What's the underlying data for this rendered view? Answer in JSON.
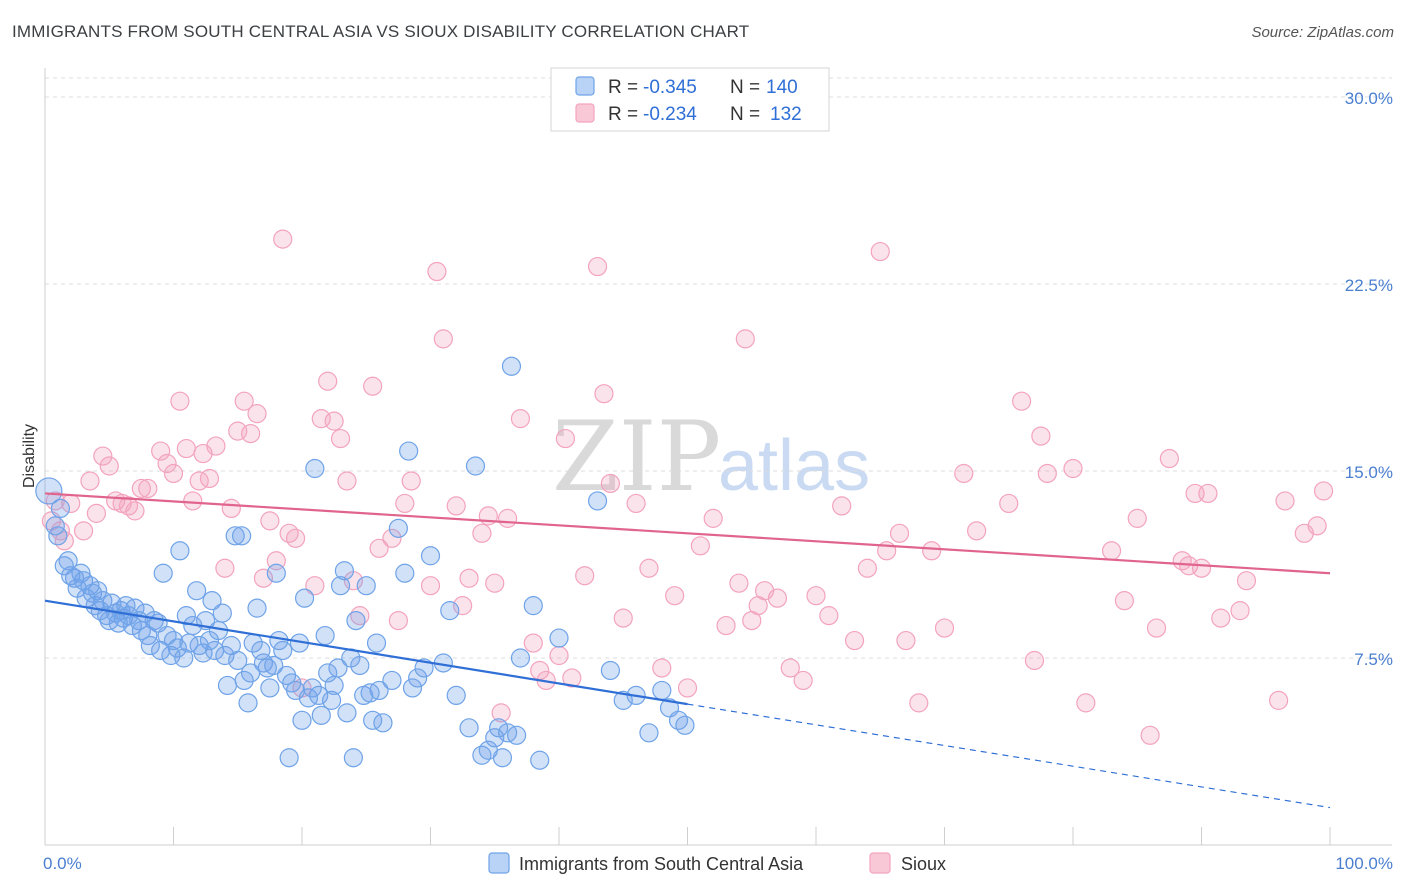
{
  "title": "IMMIGRANTS FROM SOUTH CENTRAL ASIA VS SIOUX DISABILITY CORRELATION CHART",
  "source": "Source: ZipAtlas.com",
  "watermark": {
    "zip": "ZIP",
    "atlas": "atlas"
  },
  "colors": {
    "blue": "#6fa3e8",
    "blue_line": "#2f6fd6",
    "pink": "#f3a3bd",
    "pink_line": "#e0648d",
    "tick": "#4a7fd0",
    "grid": "#dcdcdc"
  },
  "legend": {
    "rows": [
      {
        "r_label": "R = ",
        "r_value": "-0.345",
        "n_label": "N = ",
        "n_value": "140"
      },
      {
        "r_label": "R = ",
        "r_value": "-0.234",
        "n_label": "N = ",
        "n_value": "132"
      }
    ]
  },
  "bottom_legend": [
    "Immigrants from South Central Asia",
    "Sioux"
  ],
  "chart_data": {
    "type": "scatter",
    "ylabel": "Disability",
    "xlim": [
      0,
      100
    ],
    "ylim": [
      0,
      30
    ],
    "x_tick_labels": [
      "0.0%",
      "100.0%"
    ],
    "y_ticks": [
      7.5,
      15.0,
      22.5,
      30.0
    ],
    "y_tick_labels": [
      "7.5%",
      "15.0%",
      "22.5%",
      "30.0%"
    ],
    "grid": "horizontal dashed",
    "legend_placement": "top-center",
    "series": [
      {
        "name": "Immigrants from South Central Asia",
        "color": "#6fa3e8",
        "trend": {
          "x0": 0,
          "y0": 9.8,
          "x1": 100,
          "y1": 1.5,
          "solid_until": 50
        },
        "points": [
          [
            0.3,
            14.2
          ],
          [
            0.8,
            12.8
          ],
          [
            1.0,
            12.4
          ],
          [
            1.2,
            13.5
          ],
          [
            1.5,
            11.2
          ],
          [
            1.8,
            11.4
          ],
          [
            2.0,
            10.8
          ],
          [
            2.3,
            10.7
          ],
          [
            2.5,
            10.3
          ],
          [
            2.8,
            10.9
          ],
          [
            3.0,
            10.6
          ],
          [
            3.2,
            9.9
          ],
          [
            3.5,
            10.4
          ],
          [
            3.7,
            10.1
          ],
          [
            3.9,
            9.6
          ],
          [
            4.1,
            10.2
          ],
          [
            4.3,
            9.4
          ],
          [
            4.5,
            9.8
          ],
          [
            4.8,
            9.2
          ],
          [
            5.0,
            9.0
          ],
          [
            5.2,
            9.7
          ],
          [
            5.5,
            9.3
          ],
          [
            5.7,
            8.9
          ],
          [
            5.9,
            9.4
          ],
          [
            6.1,
            9.1
          ],
          [
            6.3,
            9.6
          ],
          [
            6.5,
            9.2
          ],
          [
            6.8,
            8.8
          ],
          [
            7.0,
            9.5
          ],
          [
            7.3,
            9.0
          ],
          [
            7.5,
            8.6
          ],
          [
            7.8,
            9.3
          ],
          [
            8.0,
            8.4
          ],
          [
            8.2,
            8.0
          ],
          [
            8.5,
            9.0
          ],
          [
            8.8,
            8.9
          ],
          [
            9.0,
            7.8
          ],
          [
            9.2,
            10.9
          ],
          [
            9.5,
            8.4
          ],
          [
            9.8,
            7.6
          ],
          [
            10.0,
            8.2
          ],
          [
            10.3,
            7.9
          ],
          [
            10.5,
            11.8
          ],
          [
            10.8,
            7.5
          ],
          [
            11.0,
            9.2
          ],
          [
            11.2,
            8.1
          ],
          [
            11.5,
            8.8
          ],
          [
            11.8,
            10.2
          ],
          [
            12.0,
            8.0
          ],
          [
            12.3,
            7.7
          ],
          [
            12.5,
            9.0
          ],
          [
            12.8,
            8.2
          ],
          [
            13.0,
            9.8
          ],
          [
            13.2,
            7.8
          ],
          [
            13.5,
            8.6
          ],
          [
            13.8,
            9.3
          ],
          [
            14.0,
            7.6
          ],
          [
            14.2,
            6.4
          ],
          [
            14.5,
            8.0
          ],
          [
            14.8,
            12.4
          ],
          [
            15.0,
            7.4
          ],
          [
            15.3,
            12.4
          ],
          [
            15.5,
            6.6
          ],
          [
            15.8,
            5.7
          ],
          [
            16.0,
            6.9
          ],
          [
            16.2,
            8.1
          ],
          [
            16.5,
            9.5
          ],
          [
            16.8,
            7.8
          ],
          [
            17.0,
            7.3
          ],
          [
            17.3,
            7.1
          ],
          [
            17.5,
            6.3
          ],
          [
            17.8,
            7.2
          ],
          [
            18.0,
            10.9
          ],
          [
            18.2,
            8.2
          ],
          [
            18.5,
            7.8
          ],
          [
            18.8,
            6.8
          ],
          [
            19.0,
            3.5
          ],
          [
            19.2,
            6.5
          ],
          [
            19.5,
            6.2
          ],
          [
            19.8,
            8.1
          ],
          [
            20.0,
            5.0
          ],
          [
            20.2,
            9.9
          ],
          [
            20.5,
            5.9
          ],
          [
            20.8,
            6.3
          ],
          [
            21.0,
            15.1
          ],
          [
            21.3,
            6.0
          ],
          [
            21.5,
            5.2
          ],
          [
            21.8,
            8.4
          ],
          [
            22.0,
            6.9
          ],
          [
            22.3,
            5.8
          ],
          [
            22.5,
            6.4
          ],
          [
            22.8,
            7.1
          ],
          [
            23.0,
            10.4
          ],
          [
            23.3,
            11.0
          ],
          [
            23.5,
            5.3
          ],
          [
            23.8,
            7.5
          ],
          [
            24.0,
            3.5
          ],
          [
            24.2,
            9.0
          ],
          [
            24.5,
            7.2
          ],
          [
            24.8,
            6.0
          ],
          [
            25.0,
            10.4
          ],
          [
            25.3,
            6.1
          ],
          [
            25.5,
            5.0
          ],
          [
            25.8,
            8.1
          ],
          [
            26.0,
            6.2
          ],
          [
            26.3,
            4.9
          ],
          [
            27.0,
            6.6
          ],
          [
            27.5,
            12.7
          ],
          [
            28.0,
            10.9
          ],
          [
            28.3,
            15.8
          ],
          [
            28.6,
            6.3
          ],
          [
            29.0,
            6.7
          ],
          [
            29.5,
            7.1
          ],
          [
            30.0,
            11.6
          ],
          [
            31.0,
            7.3
          ],
          [
            31.5,
            9.4
          ],
          [
            32.0,
            6.0
          ],
          [
            33.0,
            4.7
          ],
          [
            33.5,
            15.2
          ],
          [
            34.0,
            3.6
          ],
          [
            34.5,
            3.8
          ],
          [
            35.0,
            4.3
          ],
          [
            35.3,
            4.7
          ],
          [
            35.6,
            3.5
          ],
          [
            36.0,
            4.5
          ],
          [
            36.3,
            19.2
          ],
          [
            36.7,
            4.4
          ],
          [
            37.0,
            7.5
          ],
          [
            38.0,
            9.6
          ],
          [
            38.5,
            3.4
          ],
          [
            40.0,
            8.3
          ],
          [
            43.0,
            13.8
          ],
          [
            44.0,
            7.0
          ],
          [
            45.0,
            5.8
          ],
          [
            46.0,
            6.0
          ],
          [
            47.0,
            4.5
          ],
          [
            48.0,
            6.2
          ],
          [
            48.6,
            5.5
          ],
          [
            49.3,
            5.0
          ],
          [
            49.8,
            4.8
          ]
        ]
      },
      {
        "name": "Sioux",
        "color": "#f3a3bd",
        "trend": {
          "x0": 0,
          "y0": 14.1,
          "x1": 100,
          "y1": 10.9,
          "solid_until": 100
        },
        "points": [
          [
            0.5,
            13.0
          ],
          [
            0.8,
            13.8
          ],
          [
            1.2,
            12.6
          ],
          [
            1.5,
            12.2
          ],
          [
            2.0,
            13.7
          ],
          [
            3.0,
            12.6
          ],
          [
            3.5,
            14.6
          ],
          [
            4.0,
            13.3
          ],
          [
            4.5,
            15.6
          ],
          [
            5.0,
            15.2
          ],
          [
            5.5,
            13.8
          ],
          [
            6.0,
            13.7
          ],
          [
            6.5,
            13.6
          ],
          [
            7.0,
            13.4
          ],
          [
            7.5,
            14.3
          ],
          [
            8.0,
            14.3
          ],
          [
            9.0,
            15.8
          ],
          [
            9.5,
            15.3
          ],
          [
            10.0,
            14.9
          ],
          [
            10.5,
            17.8
          ],
          [
            11.0,
            15.9
          ],
          [
            11.5,
            13.8
          ],
          [
            12.0,
            14.6
          ],
          [
            12.3,
            15.7
          ],
          [
            12.8,
            14.7
          ],
          [
            13.3,
            16.0
          ],
          [
            14.0,
            11.1
          ],
          [
            14.5,
            13.5
          ],
          [
            15.0,
            16.6
          ],
          [
            15.5,
            17.8
          ],
          [
            16.0,
            16.5
          ],
          [
            16.5,
            17.3
          ],
          [
            17.0,
            10.7
          ],
          [
            17.5,
            13.0
          ],
          [
            18.0,
            11.4
          ],
          [
            18.5,
            24.3
          ],
          [
            19.0,
            12.5
          ],
          [
            19.5,
            12.3
          ],
          [
            20.0,
            6.3
          ],
          [
            21.0,
            10.4
          ],
          [
            21.5,
            17.1
          ],
          [
            22.0,
            18.6
          ],
          [
            22.5,
            17.0
          ],
          [
            23.0,
            16.3
          ],
          [
            23.5,
            14.6
          ],
          [
            24.0,
            10.6
          ],
          [
            24.5,
            9.2
          ],
          [
            25.5,
            18.4
          ],
          [
            26.0,
            11.9
          ],
          [
            27.0,
            12.3
          ],
          [
            27.5,
            9.0
          ],
          [
            28.0,
            13.7
          ],
          [
            28.5,
            14.6
          ],
          [
            30.0,
            10.4
          ],
          [
            30.5,
            23.0
          ],
          [
            31.0,
            20.3
          ],
          [
            32.0,
            13.6
          ],
          [
            32.5,
            9.6
          ],
          [
            33.0,
            10.7
          ],
          [
            34.0,
            12.5
          ],
          [
            34.5,
            13.2
          ],
          [
            35.0,
            10.5
          ],
          [
            35.5,
            5.3
          ],
          [
            36.0,
            13.1
          ],
          [
            37.0,
            17.1
          ],
          [
            38.0,
            8.1
          ],
          [
            38.5,
            7.0
          ],
          [
            39.0,
            6.6
          ],
          [
            40.0,
            7.6
          ],
          [
            40.5,
            16.3
          ],
          [
            41.0,
            6.7
          ],
          [
            42.0,
            10.8
          ],
          [
            43.0,
            23.2
          ],
          [
            43.5,
            18.1
          ],
          [
            44.0,
            14.5
          ],
          [
            45.0,
            9.1
          ],
          [
            46.0,
            13.7
          ],
          [
            47.0,
            11.1
          ],
          [
            48.0,
            7.1
          ],
          [
            49.0,
            10.0
          ],
          [
            50.0,
            6.3
          ],
          [
            51.0,
            12.0
          ],
          [
            52.0,
            13.1
          ],
          [
            53.0,
            8.8
          ],
          [
            54.0,
            10.5
          ],
          [
            54.5,
            20.3
          ],
          [
            55.0,
            9.0
          ],
          [
            55.5,
            9.6
          ],
          [
            56.0,
            10.2
          ],
          [
            57.0,
            9.9
          ],
          [
            58.0,
            7.1
          ],
          [
            59.0,
            6.6
          ],
          [
            60.0,
            10.0
          ],
          [
            61.0,
            9.2
          ],
          [
            62.0,
            13.6
          ],
          [
            63.0,
            8.2
          ],
          [
            64.0,
            11.1
          ],
          [
            65.0,
            23.8
          ],
          [
            65.5,
            11.8
          ],
          [
            66.5,
            12.5
          ],
          [
            67.0,
            8.2
          ],
          [
            68.0,
            5.7
          ],
          [
            69.0,
            11.8
          ],
          [
            70.0,
            8.7
          ],
          [
            71.5,
            14.9
          ],
          [
            72.5,
            12.6
          ],
          [
            75.0,
            13.7
          ],
          [
            76.0,
            17.8
          ],
          [
            77.0,
            7.4
          ],
          [
            77.5,
            16.4
          ],
          [
            78.0,
            14.9
          ],
          [
            80.0,
            15.1
          ],
          [
            81.0,
            5.7
          ],
          [
            83.0,
            11.8
          ],
          [
            84.0,
            9.8
          ],
          [
            85.0,
            13.1
          ],
          [
            86.0,
            4.4
          ],
          [
            86.5,
            8.7
          ],
          [
            87.5,
            15.5
          ],
          [
            88.5,
            11.4
          ],
          [
            89.0,
            11.2
          ],
          [
            89.5,
            14.1
          ],
          [
            90.0,
            11.1
          ],
          [
            90.5,
            14.1
          ],
          [
            91.5,
            9.1
          ],
          [
            93.0,
            9.4
          ],
          [
            93.5,
            10.6
          ],
          [
            96.0,
            5.8
          ],
          [
            96.5,
            13.8
          ],
          [
            98.0,
            12.5
          ],
          [
            99.0,
            12.8
          ],
          [
            99.5,
            14.2
          ]
        ]
      }
    ]
  }
}
